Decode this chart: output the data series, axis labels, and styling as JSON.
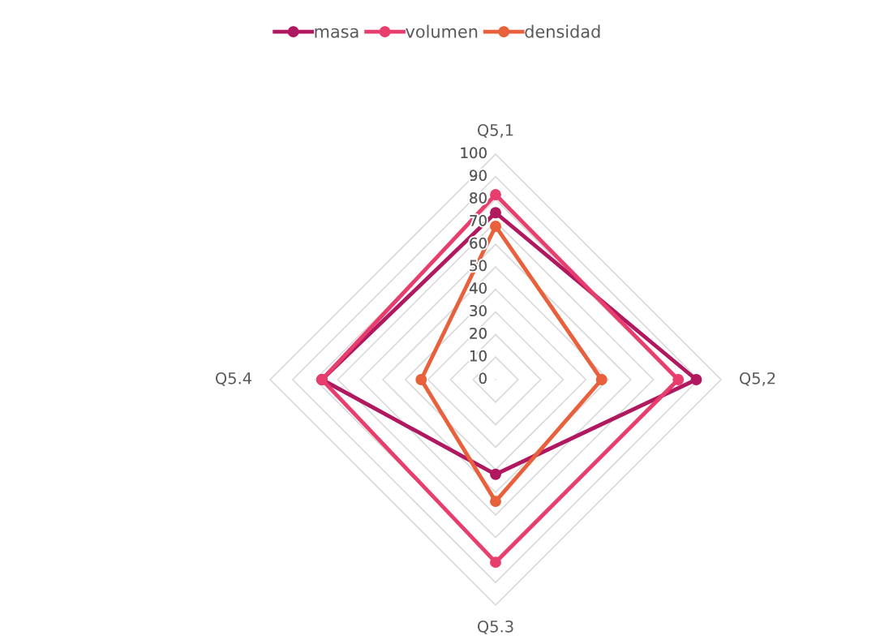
{
  "chart_data": {
    "type": "radar",
    "categories": [
      "Q5,1",
      "Q5,2",
      "Q5.3",
      "Q5.4"
    ],
    "series": [
      {
        "name": "masa",
        "color": "#b0185f",
        "values": [
          74,
          89,
          42,
          77
        ]
      },
      {
        "name": "volumen",
        "color": "#e83e6e",
        "values": [
          82,
          81,
          81,
          77
        ]
      },
      {
        "name": "densidad",
        "color": "#e8603c",
        "values": [
          68,
          47,
          54,
          33
        ]
      }
    ],
    "ylim": [
      0,
      100
    ],
    "yticks": [
      0,
      10,
      20,
      30,
      40,
      50,
      60,
      70,
      80,
      90,
      100
    ],
    "grid": true,
    "legend": "top",
    "marker": "circle",
    "line_style": "solid"
  }
}
